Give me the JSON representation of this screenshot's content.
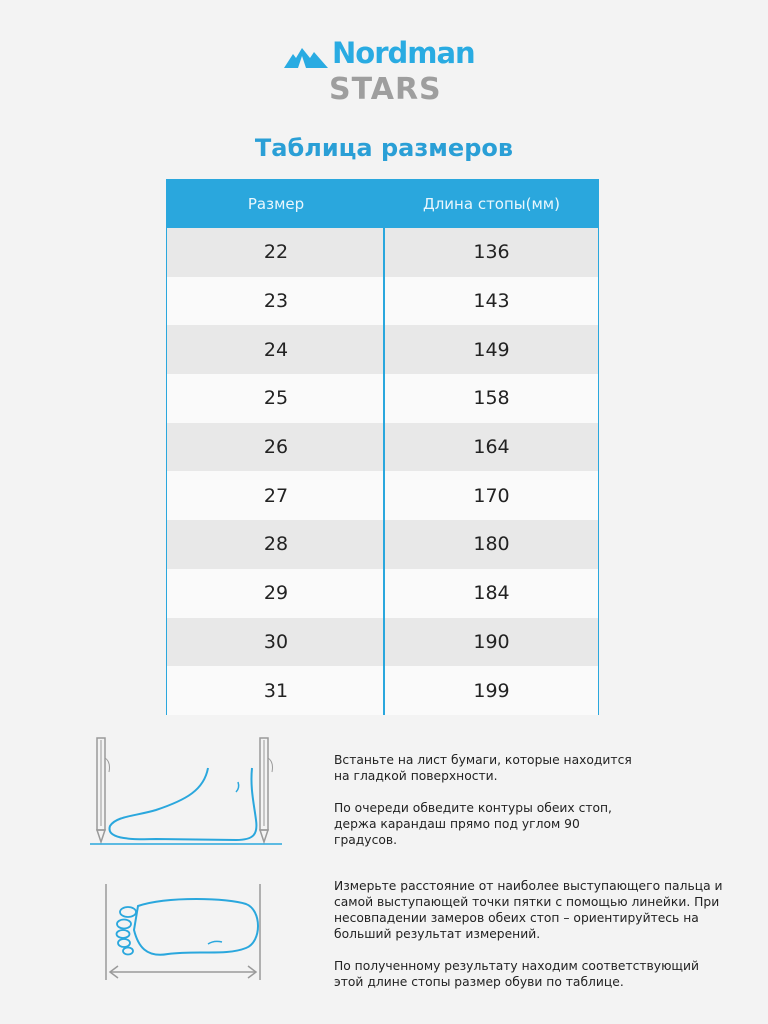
{
  "brand": {
    "name": "Nordman",
    "sub": "STARS"
  },
  "title": "Таблица размеров",
  "table": {
    "headers": [
      "Размер",
      "Длина стопы(мм)"
    ],
    "rows": [
      [
        "22",
        "136"
      ],
      [
        "23",
        "143"
      ],
      [
        "24",
        "149"
      ],
      [
        "25",
        "158"
      ],
      [
        "26",
        "164"
      ],
      [
        "27",
        "170"
      ],
      [
        "28",
        "180"
      ],
      [
        "29",
        "184"
      ],
      [
        "30",
        "190"
      ],
      [
        "31",
        "199"
      ]
    ]
  },
  "instructions": {
    "step1": "Встаньте на лист бумаги, которые находится на гладкой поверхности.",
    "step2": "По очереди обведите контуры обеих стоп, держа карандаш прямо под углом 90 градусов.",
    "step3": "Измерьте расстояние от наиболее выступающего пальца и самой выступающей точки пятки с помощью линейки. При несовпадении замеров обеих стоп – ориентируйтесь на больший результат измерений.",
    "step4": "По полученному результату находим соответствующий этой длине стопы размер обуви по таблице."
  },
  "colors": {
    "accent": "#2aa7dd",
    "gray": "#9e9e9e"
  }
}
